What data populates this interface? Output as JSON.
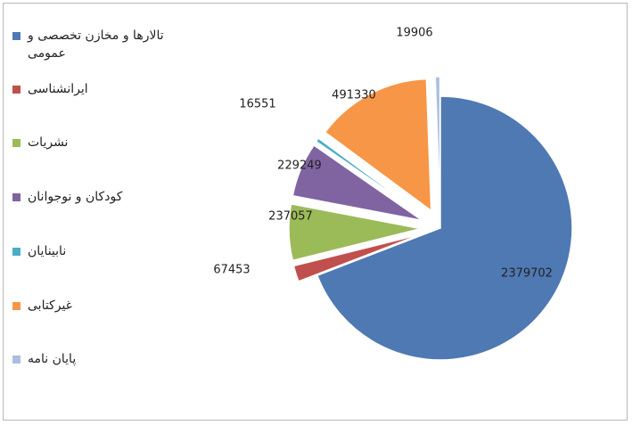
{
  "chart_data": {
    "type": "pie",
    "title": "",
    "legend_position": "left",
    "exploded": true,
    "slices": [
      {
        "label": "تالارها و مخازن تخصصی و عمومی",
        "value": 2379702,
        "color": "#4F79B3"
      },
      {
        "label": "ایرانشناسی",
        "value": 67453,
        "color": "#C0504D"
      },
      {
        "label": "نشریات",
        "value": 237057,
        "color": "#9BBB59"
      },
      {
        "label": "کودکان و نوجوانان",
        "value": 229249,
        "color": "#8064A2"
      },
      {
        "label": "نابینایان",
        "value": 16551,
        "color": "#4BACC6"
      },
      {
        "label": "غیرکتابی",
        "value": 491330,
        "color": "#F79646"
      },
      {
        "label": "پایان نامه",
        "value": 19906,
        "color": "#A9BFE0"
      }
    ]
  }
}
